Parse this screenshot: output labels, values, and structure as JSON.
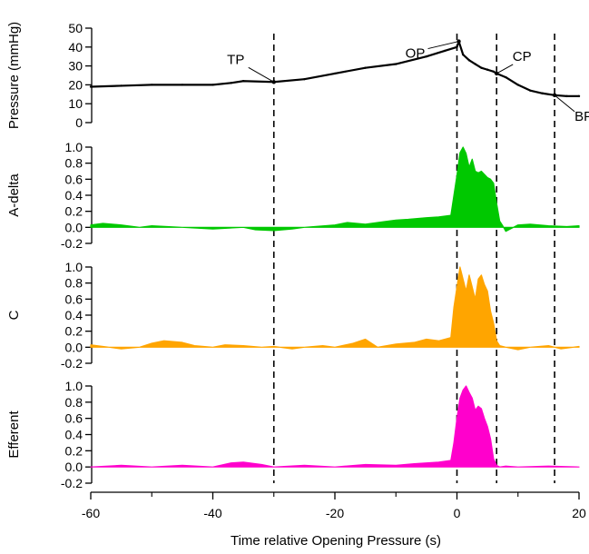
{
  "chart_data": [
    {
      "type": "line",
      "ylabel": "Pressure (mmHg)",
      "ylim": [
        0,
        50
      ],
      "yticks": [
        0,
        10,
        20,
        30,
        40,
        50
      ],
      "xlim": [
        -60,
        20
      ],
      "color": "#000000",
      "x": [
        -60,
        -55,
        -50,
        -45,
        -40,
        -37,
        -35,
        -30,
        -25,
        -20,
        -15,
        -10,
        -5,
        -2,
        0,
        0.3,
        1,
        2,
        3,
        4,
        5,
        6,
        6.5,
        8,
        10,
        12,
        14,
        16,
        18,
        20
      ],
      "y": [
        19,
        19.5,
        20,
        20,
        20,
        21,
        22,
        21.5,
        23,
        26,
        29,
        31,
        35,
        38,
        40,
        43,
        36,
        33,
        31,
        29,
        28,
        27,
        26,
        24,
        20,
        17,
        15.5,
        14.5,
        14,
        14
      ],
      "annotations": [
        {
          "label": "TP",
          "x": -30,
          "y": 21.5
        },
        {
          "label": "OP",
          "x": 0.3,
          "y": 43
        },
        {
          "label": "CP",
          "x": 6.5,
          "y": 26
        },
        {
          "label": "BP",
          "x": 16,
          "y": 14.5
        }
      ]
    },
    {
      "type": "area",
      "ylabel": "A-delta",
      "ylim": [
        -0.2,
        1.0
      ],
      "yticks": [
        -0.2,
        0.0,
        0.2,
        0.4,
        0.6,
        0.8,
        1.0
      ],
      "color": "#00c800",
      "x": [
        -60,
        -58,
        -55,
        -52,
        -50,
        -45,
        -40,
        -35,
        -33,
        -30,
        -27,
        -25,
        -20,
        -18,
        -15,
        -12,
        -10,
        -8,
        -5,
        -3,
        -1,
        -0.5,
        0,
        0.5,
        1,
        1.5,
        2,
        2.5,
        3,
        3.5,
        4,
        4.5,
        5,
        5.5,
        6,
        6.5,
        7,
        7.5,
        8,
        10,
        12,
        15,
        18,
        20
      ],
      "y": [
        0.03,
        0.05,
        0.03,
        0.0,
        0.02,
        0.0,
        -0.02,
        0.0,
        -0.03,
        -0.04,
        -0.02,
        0.0,
        0.03,
        0.06,
        0.04,
        0.07,
        0.09,
        0.1,
        0.12,
        0.13,
        0.15,
        0.4,
        0.65,
        0.93,
        1.0,
        0.92,
        0.75,
        0.85,
        0.7,
        0.68,
        0.7,
        0.66,
        0.62,
        0.6,
        0.55,
        0.3,
        0.08,
        0.02,
        -0.05,
        0.03,
        0.04,
        0.02,
        0.01,
        0.02
      ]
    },
    {
      "type": "area",
      "ylabel": "C",
      "ylim": [
        -0.2,
        1.0
      ],
      "yticks": [
        -0.2,
        0.0,
        0.2,
        0.4,
        0.6,
        0.8,
        1.0
      ],
      "color": "#ffa500",
      "x": [
        -60,
        -57,
        -55,
        -52,
        -50,
        -48,
        -45,
        -43,
        -40,
        -38,
        -35,
        -32,
        -30,
        -27,
        -25,
        -22,
        -20,
        -17,
        -15,
        -13,
        -10,
        -7,
        -5,
        -3,
        -1,
        -0.5,
        0,
        0.5,
        1,
        1.5,
        2,
        2.5,
        3,
        3.5,
        4,
        4.5,
        5,
        5.5,
        6,
        6.5,
        7,
        8,
        10,
        12,
        15,
        17,
        20
      ],
      "y": [
        0.03,
        0.0,
        -0.02,
        0.0,
        0.05,
        0.08,
        0.06,
        0.02,
        0.0,
        0.03,
        0.02,
        0.0,
        0.01,
        -0.02,
        0.0,
        0.02,
        0.0,
        0.05,
        0.1,
        0.0,
        0.04,
        0.06,
        0.1,
        0.08,
        0.12,
        0.5,
        0.75,
        1.0,
        0.85,
        0.7,
        0.9,
        0.75,
        0.6,
        0.85,
        0.9,
        0.78,
        0.7,
        0.45,
        0.3,
        0.08,
        0.02,
        0.0,
        -0.03,
        0.0,
        0.02,
        -0.02,
        0.01
      ]
    },
    {
      "type": "area",
      "ylabel": "Efferent",
      "ylim": [
        -0.2,
        1.0
      ],
      "yticks": [
        -0.2,
        0.0,
        0.2,
        0.4,
        0.6,
        0.8,
        1.0
      ],
      "color": "#ff00cc",
      "x": [
        -60,
        -55,
        -50,
        -45,
        -40,
        -37,
        -35,
        -32,
        -30,
        -25,
        -20,
        -15,
        -10,
        -7,
        -5,
        -3,
        -1,
        -0.5,
        0,
        0.5,
        1,
        1.5,
        2,
        2.5,
        3,
        3.5,
        4,
        4.5,
        5,
        5.5,
        6,
        6.5,
        7,
        8,
        10,
        15,
        20
      ],
      "y": [
        0.0,
        0.02,
        0.0,
        0.02,
        0.0,
        0.05,
        0.06,
        0.03,
        0.0,
        0.02,
        0.0,
        0.03,
        0.02,
        0.04,
        0.05,
        0.06,
        0.08,
        0.3,
        0.6,
        0.85,
        0.95,
        1.0,
        0.92,
        0.85,
        0.7,
        0.75,
        0.72,
        0.6,
        0.5,
        0.35,
        0.1,
        0.02,
        0.0,
        0.01,
        0.0,
        0.01,
        0.0
      ]
    }
  ],
  "xaxis": {
    "label": "Time relative Opening Pressure (s)",
    "xlim": [
      -60,
      20
    ],
    "ticks": [
      -60,
      -40,
      -20,
      0,
      20
    ]
  },
  "event_lines_x": [
    -30,
    0,
    6.5,
    16
  ]
}
